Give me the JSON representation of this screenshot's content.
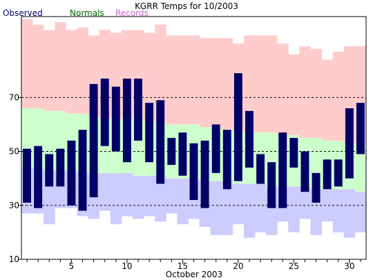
{
  "chart_data": {
    "type": "bar",
    "title": "KGRR Temps for 10/2003",
    "xlabel": "October 2003",
    "ylabel": "",
    "xlim": [
      0.5,
      31.5
    ],
    "ylim": [
      10,
      100
    ],
    "y_ticks": [
      10,
      30,
      50,
      70
    ],
    "x_ticks": [
      5,
      10,
      15,
      20,
      25,
      30
    ],
    "y_gridlines": [
      30,
      50,
      70
    ],
    "grid_style": "dashed",
    "legend": [
      {
        "key": "observed",
        "label": "Observed",
        "color": "#000066"
      },
      {
        "key": "normals",
        "label": "Normals",
        "color": "#006600"
      },
      {
        "key": "records",
        "label": "Records",
        "color": "#cc66cc"
      }
    ],
    "colors": {
      "observed": "#000066",
      "normals": "#ccffcc",
      "records_high": "#ffcccc",
      "records_low": "#ccccff"
    },
    "days": [
      1,
      2,
      3,
      4,
      5,
      6,
      7,
      8,
      9,
      10,
      11,
      12,
      13,
      14,
      15,
      16,
      17,
      18,
      19,
      20,
      21,
      22,
      23,
      24,
      25,
      26,
      27,
      28,
      29,
      30,
      31
    ],
    "observed_high": [
      51,
      52,
      49,
      51,
      54,
      58,
      75,
      77,
      74,
      77,
      77,
      68,
      69,
      55,
      57,
      53,
      54,
      60,
      58,
      79,
      65,
      49,
      46,
      57,
      55,
      50,
      42,
      47,
      47,
      66,
      68
    ],
    "observed_low": [
      31,
      29,
      37,
      37,
      30,
      28,
      33,
      52,
      50,
      46,
      54,
      46,
      38,
      45,
      41,
      32,
      29,
      42,
      36,
      39,
      44,
      38,
      29,
      29,
      44,
      35,
      31,
      36,
      37,
      40,
      49
    ],
    "normal_high": [
      66,
      66,
      65,
      65,
      64,
      64,
      63,
      62,
      62,
      62,
      62,
      61,
      61,
      60,
      60,
      60,
      59,
      59,
      58,
      58,
      57,
      57,
      57,
      56,
      56,
      55,
      55,
      54,
      54,
      53,
      53
    ],
    "normal_low": [
      44,
      44,
      43,
      43,
      43,
      42,
      42,
      42,
      42,
      42,
      41,
      41,
      41,
      40,
      40,
      40,
      39,
      39,
      39,
      38,
      38,
      38,
      37,
      37,
      37,
      37,
      36,
      36,
      36,
      36,
      35
    ],
    "record_high": [
      99,
      97,
      95,
      98,
      95,
      96,
      93,
      95,
      94,
      95,
      95,
      94,
      97,
      93,
      93,
      93,
      92,
      92,
      92,
      90,
      93,
      93,
      93,
      90,
      86,
      89,
      88,
      84,
      87,
      89,
      89
    ],
    "record_low": [
      27,
      27,
      23,
      29,
      29,
      26,
      25,
      28,
      23,
      26,
      25,
      26,
      24,
      27,
      23,
      25,
      22,
      19,
      19,
      23,
      18,
      20,
      19,
      24,
      20,
      25,
      19,
      24,
      20,
      18,
      20
    ]
  }
}
